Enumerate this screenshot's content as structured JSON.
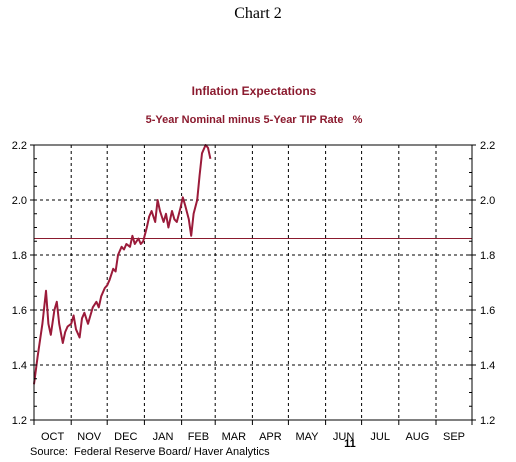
{
  "header": {
    "chart_number": "Chart 2"
  },
  "source": "Source:  Federal Reserve Board/ Haver Analytics",
  "colors": {
    "series": "#9b1b3a",
    "reference_line": "#8b1a2e",
    "title": "#8b1a2e",
    "axis": "#000000"
  },
  "chart_data": {
    "type": "line",
    "title": "Inflation Expectations",
    "subtitle": "5-Year Nominal minus 5-Year TIP Rate   %",
    "x_tick_labels": [
      "OCT",
      "NOV",
      "DEC",
      "JAN",
      "FEB",
      "MAR",
      "APR",
      "MAY",
      "JUN",
      "JUL",
      "AUG",
      "SEP"
    ],
    "x_year_label": "11",
    "y_tick_labels": [
      "1.2",
      "1.4",
      "1.6",
      "1.8",
      "2.0",
      "2.2"
    ],
    "ylim": [
      1.2,
      2.2
    ],
    "xlim": [
      "2010-10-01",
      "2011-10-01"
    ],
    "grid": "dotted",
    "reference_line": {
      "y": 1.86
    },
    "series": [
      {
        "x": [
          "2010-10-01",
          "2010-10-04",
          "2010-10-06",
          "2010-10-08",
          "2010-10-11",
          "2010-10-13",
          "2010-10-15",
          "2010-10-18",
          "2010-10-20",
          "2010-10-22",
          "2010-10-25",
          "2010-10-27",
          "2010-10-29",
          "2010-11-01",
          "2010-11-03",
          "2010-11-05",
          "2010-11-08",
          "2010-11-10",
          "2010-11-12",
          "2010-11-15",
          "2010-11-17",
          "2010-11-19",
          "2010-11-22",
          "2010-11-24",
          "2010-11-26",
          "2010-11-29",
          "2010-12-01",
          "2010-12-03",
          "2010-12-06",
          "2010-12-08",
          "2010-12-10",
          "2010-12-13",
          "2010-12-15",
          "2010-12-17",
          "2010-12-20",
          "2010-12-22",
          "2010-12-24",
          "2010-12-27",
          "2010-12-29",
          "2010-12-31",
          "2011-01-03",
          "2011-01-05",
          "2011-01-07",
          "2011-01-10",
          "2011-01-12",
          "2011-01-14",
          "2011-01-17",
          "2011-01-19",
          "2011-01-21",
          "2011-01-24",
          "2011-01-26",
          "2011-01-28",
          "2011-01-31",
          "2011-02-02",
          "2011-02-04",
          "2011-02-07",
          "2011-02-09",
          "2011-02-11",
          "2011-02-14",
          "2011-02-16",
          "2011-02-18",
          "2011-02-21",
          "2011-02-23",
          "2011-02-25"
        ],
        "values": [
          1.33,
          1.43,
          1.49,
          1.55,
          1.67,
          1.55,
          1.51,
          1.6,
          1.63,
          1.55,
          1.48,
          1.52,
          1.54,
          1.55,
          1.58,
          1.53,
          1.5,
          1.57,
          1.59,
          1.55,
          1.58,
          1.61,
          1.63,
          1.61,
          1.65,
          1.68,
          1.69,
          1.71,
          1.75,
          1.74,
          1.8,
          1.83,
          1.82,
          1.84,
          1.83,
          1.87,
          1.84,
          1.86,
          1.84,
          1.85,
          1.9,
          1.94,
          1.96,
          1.92,
          2.0,
          1.96,
          1.92,
          1.95,
          1.9,
          1.96,
          1.93,
          1.92,
          1.97,
          2.01,
          1.98,
          1.93,
          1.87,
          1.95,
          2.0,
          2.09,
          2.17,
          2.2,
          2.19,
          2.15
        ]
      }
    ]
  }
}
